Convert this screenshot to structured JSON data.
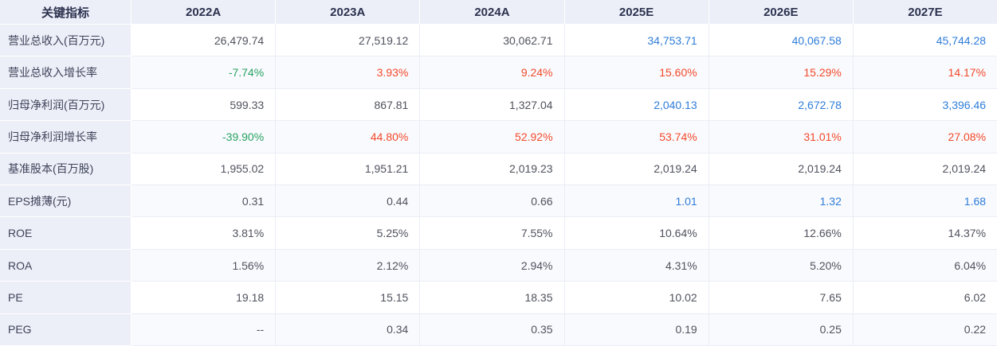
{
  "colors": {
    "estimate_blue": "#2e7cd9",
    "increase_red": "#f3492a",
    "decrease_green": "#27a263",
    "header_bg": "#edeff8",
    "alt_row_bg": "#f9fafd"
  },
  "table": {
    "indicator_header": "关键指标",
    "year_columns": [
      "2022A",
      "2023A",
      "2024A",
      "2025E",
      "2026E",
      "2027E"
    ],
    "rows": [
      {
        "label": "营业总收入(百万元)",
        "values": [
          "26,479.74",
          "27,519.12",
          "30,062.71",
          "34,753.71",
          "40,067.58",
          "45,744.28"
        ],
        "styles": [
          "default",
          "default",
          "default",
          "blue",
          "blue",
          "blue"
        ]
      },
      {
        "label": "营业总收入增长率",
        "values": [
          "-7.74%",
          "3.93%",
          "9.24%",
          "15.60%",
          "15.29%",
          "14.17%"
        ],
        "styles": [
          "green",
          "red",
          "red",
          "red",
          "red",
          "red"
        ]
      },
      {
        "label": "归母净利润(百万元)",
        "values": [
          "599.33",
          "867.81",
          "1,327.04",
          "2,040.13",
          "2,672.78",
          "3,396.46"
        ],
        "styles": [
          "default",
          "default",
          "default",
          "blue",
          "blue",
          "blue"
        ]
      },
      {
        "label": "归母净利润增长率",
        "values": [
          "-39.90%",
          "44.80%",
          "52.92%",
          "53.74%",
          "31.01%",
          "27.08%"
        ],
        "styles": [
          "green",
          "red",
          "red",
          "red",
          "red",
          "red"
        ]
      },
      {
        "label": "基准股本(百万股)",
        "values": [
          "1,955.02",
          "1,951.21",
          "2,019.23",
          "2,019.24",
          "2,019.24",
          "2,019.24"
        ],
        "styles": [
          "default",
          "default",
          "default",
          "default",
          "default",
          "default"
        ]
      },
      {
        "label": "EPS摊薄(元)",
        "values": [
          "0.31",
          "0.44",
          "0.66",
          "1.01",
          "1.32",
          "1.68"
        ],
        "styles": [
          "default",
          "default",
          "default",
          "blue",
          "blue",
          "blue"
        ]
      },
      {
        "label": "ROE",
        "values": [
          "3.81%",
          "5.25%",
          "7.55%",
          "10.64%",
          "12.66%",
          "14.37%"
        ],
        "styles": [
          "default",
          "default",
          "default",
          "default",
          "default",
          "default"
        ]
      },
      {
        "label": "ROA",
        "values": [
          "1.56%",
          "2.12%",
          "2.94%",
          "4.31%",
          "5.20%",
          "6.04%"
        ],
        "styles": [
          "default",
          "default",
          "default",
          "default",
          "default",
          "default"
        ]
      },
      {
        "label": "PE",
        "values": [
          "19.18",
          "15.15",
          "18.35",
          "10.02",
          "7.65",
          "6.02"
        ],
        "styles": [
          "default",
          "default",
          "default",
          "default",
          "default",
          "default"
        ]
      },
      {
        "label": "PEG",
        "values": [
          "--",
          "0.34",
          "0.35",
          "0.19",
          "0.25",
          "0.22"
        ],
        "styles": [
          "default",
          "default",
          "default",
          "default",
          "default",
          "default"
        ]
      }
    ]
  }
}
